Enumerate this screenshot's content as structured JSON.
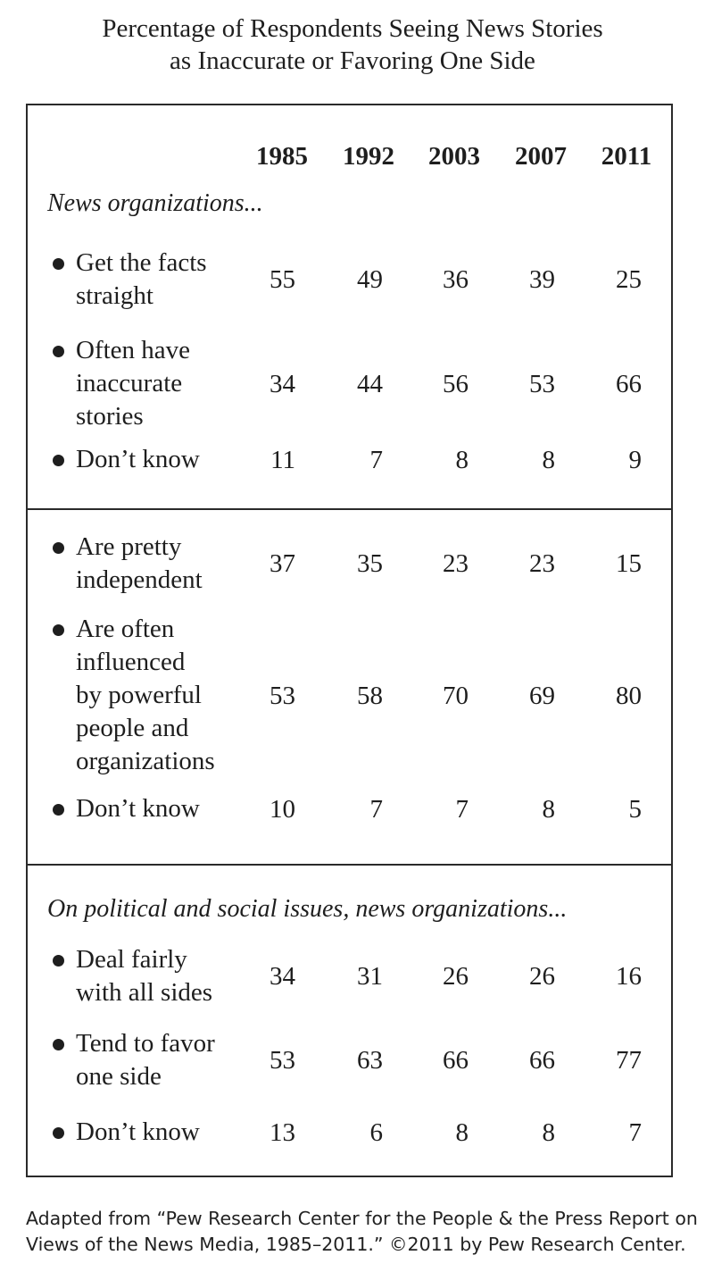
{
  "title": {
    "line1": "Percentage of Respondents Seeing News Stories",
    "line2": "as Inaccurate or Favoring One Side"
  },
  "chart_data": {
    "type": "table",
    "columns": [
      "1985",
      "1992",
      "2003",
      "2007",
      "2011"
    ],
    "sections": [
      {
        "heading": "News organizations...",
        "rows": [
          {
            "label": [
              "Get the facts",
              "straight"
            ],
            "values": [
              55,
              49,
              36,
              39,
              25
            ]
          },
          {
            "label": [
              "Often have",
              "inaccurate",
              "stories"
            ],
            "values": [
              34,
              44,
              56,
              53,
              66
            ]
          },
          {
            "label": [
              "Don’t know"
            ],
            "values": [
              11,
              7,
              8,
              8,
              9
            ]
          }
        ]
      },
      {
        "heading": "",
        "rows": [
          {
            "label": [
              "Are pretty",
              "independent"
            ],
            "values": [
              37,
              35,
              23,
              23,
              15
            ]
          },
          {
            "label": [
              "Are often",
              "influenced",
              "by powerful",
              "people and",
              "organizations"
            ],
            "values": [
              53,
              58,
              70,
              69,
              80
            ]
          },
          {
            "label": [
              "Don’t know"
            ],
            "values": [
              10,
              7,
              7,
              8,
              5
            ]
          }
        ]
      },
      {
        "heading": "On political and social issues, news organizations...",
        "rows": [
          {
            "label": [
              "Deal fairly",
              "with all sides"
            ],
            "values": [
              34,
              31,
              26,
              26,
              16
            ]
          },
          {
            "label": [
              "Tend to favor",
              "one side"
            ],
            "values": [
              53,
              63,
              66,
              66,
              77
            ]
          },
          {
            "label": [
              "Don’t know"
            ],
            "values": [
              13,
              6,
              8,
              8,
              7
            ]
          }
        ]
      }
    ]
  },
  "footnote": {
    "line1": "Adapted from “Pew Research Center for the People & the Press Report on",
    "line2": "Views of the News Media, 1985–2011.” ©2011 by Pew Research Center."
  }
}
